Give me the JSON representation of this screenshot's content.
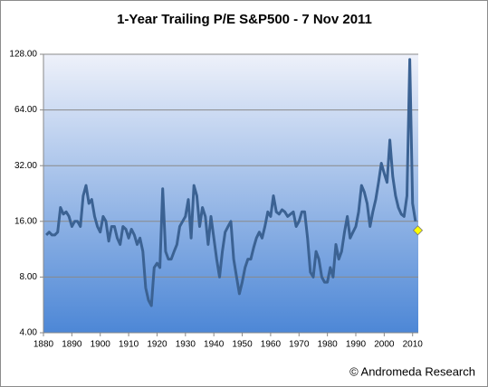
{
  "chart_data": {
    "type": "line",
    "title": "1-Year Trailing  P/E  S&P500 - 7 Nov 2011",
    "annotation": "© Andromeda Research",
    "color": "#3b6293",
    "x": [
      1881,
      1882,
      1883,
      1884,
      1885,
      1886,
      1887,
      1888,
      1889,
      1890,
      1891,
      1892,
      1893,
      1894,
      1895,
      1896,
      1897,
      1898,
      1899,
      1900,
      1901,
      1902,
      1903,
      1904,
      1905,
      1906,
      1907,
      1908,
      1909,
      1910,
      1911,
      1912,
      1913,
      1914,
      1915,
      1916,
      1917,
      1918,
      1919,
      1920,
      1921,
      1922,
      1923,
      1924,
      1925,
      1926,
      1927,
      1928,
      1929,
      1930,
      1931,
      1932,
      1933,
      1934,
      1935,
      1936,
      1937,
      1938,
      1939,
      1940,
      1941,
      1942,
      1943,
      1944,
      1945,
      1946,
      1947,
      1948,
      1949,
      1950,
      1951,
      1952,
      1953,
      1954,
      1955,
      1956,
      1957,
      1958,
      1959,
      1960,
      1961,
      1962,
      1963,
      1964,
      1965,
      1966,
      1967,
      1968,
      1969,
      1970,
      1971,
      1972,
      1973,
      1974,
      1975,
      1976,
      1977,
      1978,
      1979,
      1980,
      1981,
      1982,
      1983,
      1984,
      1985,
      1986,
      1987,
      1988,
      1989,
      1990,
      1991,
      1992,
      1993,
      1994,
      1995,
      1996,
      1997,
      1998,
      1999,
      2000,
      2001,
      2002,
      2003,
      2004,
      2005,
      2006,
      2007,
      2008,
      2009,
      2010,
      2011
    ],
    "values": [
      13.5,
      14,
      13.5,
      13.5,
      14,
      19,
      17.5,
      18,
      17,
      15,
      16,
      16,
      15,
      22,
      25,
      20,
      21,
      17,
      15,
      14,
      17,
      16,
      12.5,
      15,
      15,
      13,
      12,
      15,
      14.5,
      13,
      14.5,
      13.5,
      12,
      13,
      11,
      7,
      6,
      5.6,
      9,
      9.5,
      9,
      24,
      11,
      10,
      10,
      11,
      12,
      15,
      16,
      17,
      21,
      13,
      25,
      22,
      15,
      19,
      17,
      12,
      17,
      13,
      10,
      8,
      11,
      14,
      15,
      16,
      10,
      8,
      6.5,
      7.5,
      9,
      10,
      10,
      11.5,
      13,
      14,
      13,
      15,
      18,
      17,
      22,
      18,
      17.5,
      18.5,
      18,
      17,
      17.5,
      18,
      15,
      16,
      18,
      18,
      13,
      8.5,
      8,
      11,
      10,
      8,
      7.5,
      7.5,
      9,
      8,
      12,
      10,
      11,
      14,
      17,
      13,
      14,
      15,
      18,
      25,
      23,
      20,
      15,
      18,
      21,
      26,
      33,
      29,
      26,
      44,
      28,
      22,
      19,
      17.5,
      17,
      22,
      120,
      20,
      16
    ],
    "highlight": {
      "x": 2011.85,
      "value": 14.3,
      "color": "#ffff00"
    },
    "xlim": [
      1880,
      2012
    ],
    "xticks": [
      1880,
      1890,
      1900,
      1910,
      1920,
      1930,
      1940,
      1950,
      1960,
      1970,
      1980,
      1990,
      2000,
      2010
    ],
    "ylim": [
      4,
      128
    ],
    "ylog": true,
    "yticks": [
      {
        "value": 4,
        "label": "4.00"
      },
      {
        "value": 8,
        "label": "8.00"
      },
      {
        "value": 16,
        "label": "16.00"
      },
      {
        "value": 32,
        "label": "32.00"
      },
      {
        "value": 64,
        "label": "64.00"
      },
      {
        "value": 128,
        "label": "128.00"
      }
    ],
    "grid": true
  }
}
